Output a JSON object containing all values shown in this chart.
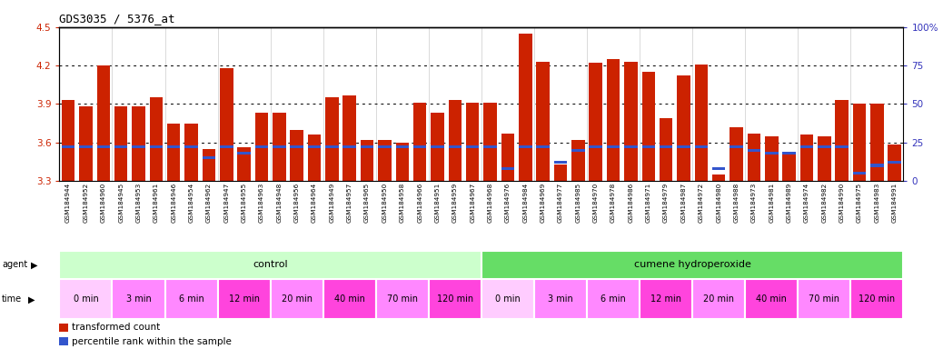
{
  "title": "GDS3035 / 5376_at",
  "ylim_left": [
    3.3,
    4.5
  ],
  "ylim_right": [
    0,
    100
  ],
  "yticks_left": [
    3.3,
    3.6,
    3.9,
    4.2,
    4.5
  ],
  "yticks_right": [
    0,
    25,
    50,
    75,
    100
  ],
  "ytick_labels_right": [
    "0",
    "25",
    "50",
    "75",
    "100%"
  ],
  "bar_color": "#cc2200",
  "blue_color": "#3355cc",
  "samples": [
    "GSM184944",
    "GSM184952",
    "GSM184960",
    "GSM184945",
    "GSM184953",
    "GSM184961",
    "GSM184946",
    "GSM184954",
    "GSM184962",
    "GSM184947",
    "GSM184955",
    "GSM184963",
    "GSM184948",
    "GSM184956",
    "GSM184964",
    "GSM184949",
    "GSM184957",
    "GSM184965",
    "GSM184950",
    "GSM184958",
    "GSM184966",
    "GSM184951",
    "GSM184959",
    "GSM184967",
    "GSM184968",
    "GSM184976",
    "GSM184984",
    "GSM184969",
    "GSM184977",
    "GSM184985",
    "GSM184970",
    "GSM184978",
    "GSM184986",
    "GSM184971",
    "GSM184979",
    "GSM184987",
    "GSM184972",
    "GSM184980",
    "GSM184988",
    "GSM184973",
    "GSM184981",
    "GSM184989",
    "GSM184974",
    "GSM184982",
    "GSM184990",
    "GSM184975",
    "GSM184983",
    "GSM184991"
  ],
  "red_values": [
    3.93,
    3.88,
    4.2,
    3.88,
    3.88,
    3.95,
    3.75,
    3.75,
    3.55,
    4.18,
    3.56,
    3.83,
    3.83,
    3.7,
    3.66,
    3.95,
    3.97,
    3.62,
    3.62,
    3.6,
    3.91,
    3.83,
    3.93,
    3.91,
    3.91,
    3.67,
    4.45,
    4.23,
    3.43,
    3.62,
    4.22,
    4.25,
    4.23,
    4.15,
    3.79,
    4.12,
    4.21,
    3.35,
    3.72,
    3.67,
    3.65,
    3.52,
    3.66,
    3.65,
    3.93,
    3.9,
    3.9,
    3.58
  ],
  "blue_values": [
    22,
    22,
    22,
    22,
    22,
    22,
    22,
    22,
    15,
    22,
    18,
    22,
    22,
    22,
    22,
    22,
    22,
    22,
    22,
    22,
    22,
    22,
    22,
    22,
    22,
    8,
    22,
    22,
    12,
    20,
    22,
    22,
    22,
    22,
    22,
    22,
    22,
    8,
    22,
    20,
    18,
    18,
    22,
    22,
    22,
    5,
    10,
    12
  ],
  "agent_groups": [
    {
      "label": "control",
      "start": 0,
      "end": 24,
      "color": "#ccffcc"
    },
    {
      "label": "cumene hydroperoxide",
      "start": 24,
      "end": 48,
      "color": "#66dd66"
    }
  ],
  "time_colors": [
    "#ffccff",
    "#ff88ff",
    "#ff88ff",
    "#ff44dd",
    "#ff88ff",
    "#ff44dd",
    "#ff88ff",
    "#ff44dd",
    "#ffccff",
    "#ff88ff",
    "#ff88ff",
    "#ff44dd",
    "#ff88ff",
    "#ff44dd",
    "#ff88ff",
    "#ff44dd"
  ],
  "time_labels": [
    "0 min",
    "3 min",
    "6 min",
    "12 min",
    "20 min",
    "40 min",
    "70 min",
    "120 min",
    "0 min",
    "3 min",
    "6 min",
    "12 min",
    "20 min",
    "40 min",
    "70 min",
    "120 min"
  ],
  "time_starts": [
    0,
    3,
    6,
    9,
    12,
    15,
    18,
    21,
    24,
    27,
    30,
    33,
    36,
    39,
    42,
    45
  ],
  "time_ends": [
    3,
    6,
    9,
    12,
    15,
    18,
    21,
    24,
    27,
    30,
    33,
    36,
    39,
    42,
    45,
    48
  ],
  "grid_dotted_at": [
    3.6,
    3.9,
    4.2
  ],
  "left_axis_color": "#cc2200",
  "right_axis_color": "#3333bb"
}
